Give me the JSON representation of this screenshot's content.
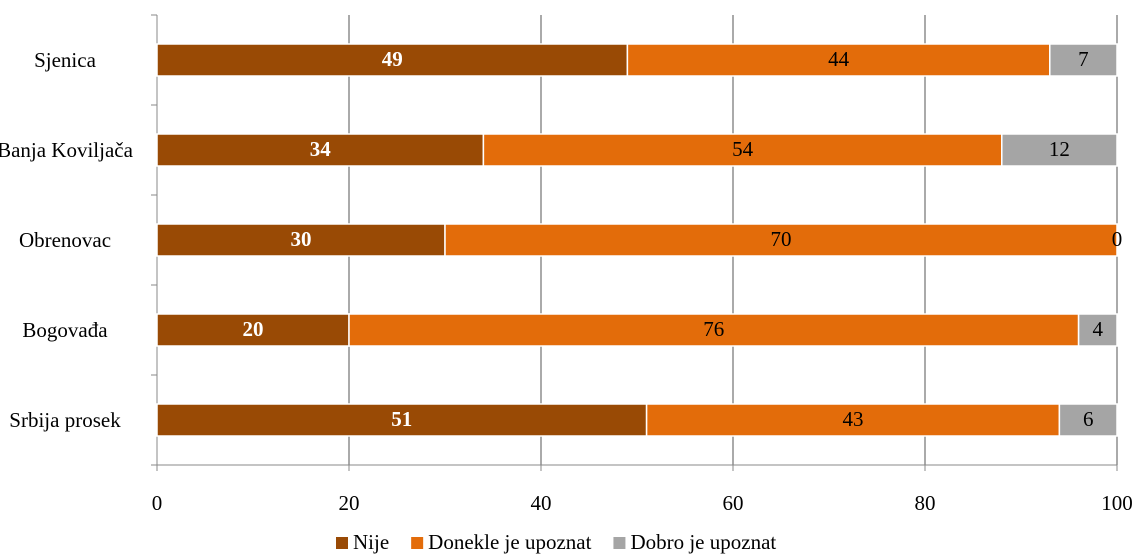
{
  "chart_data": {
    "type": "stacked-bar-horizontal",
    "categories": [
      "Sjenica",
      "Banja Koviljača",
      "Obrenovac",
      "Bogovađa",
      "Srbija prosek"
    ],
    "series": [
      {
        "name": "Nije",
        "color": "#994a05",
        "values": [
          49,
          34,
          30,
          20,
          51
        ]
      },
      {
        "name": "Donekle je upoznat",
        "color": "#e36c0a",
        "values": [
          44,
          54,
          70,
          76,
          43
        ]
      },
      {
        "name": "Dobro je upoznat",
        "color": "#a5a5a5",
        "values": [
          7,
          12,
          0,
          4,
          6
        ]
      }
    ],
    "xlim": [
      0,
      100
    ],
    "xticks": [
      0,
      20,
      40,
      60,
      80,
      100
    ],
    "grid": true,
    "legend": "bottom"
  }
}
